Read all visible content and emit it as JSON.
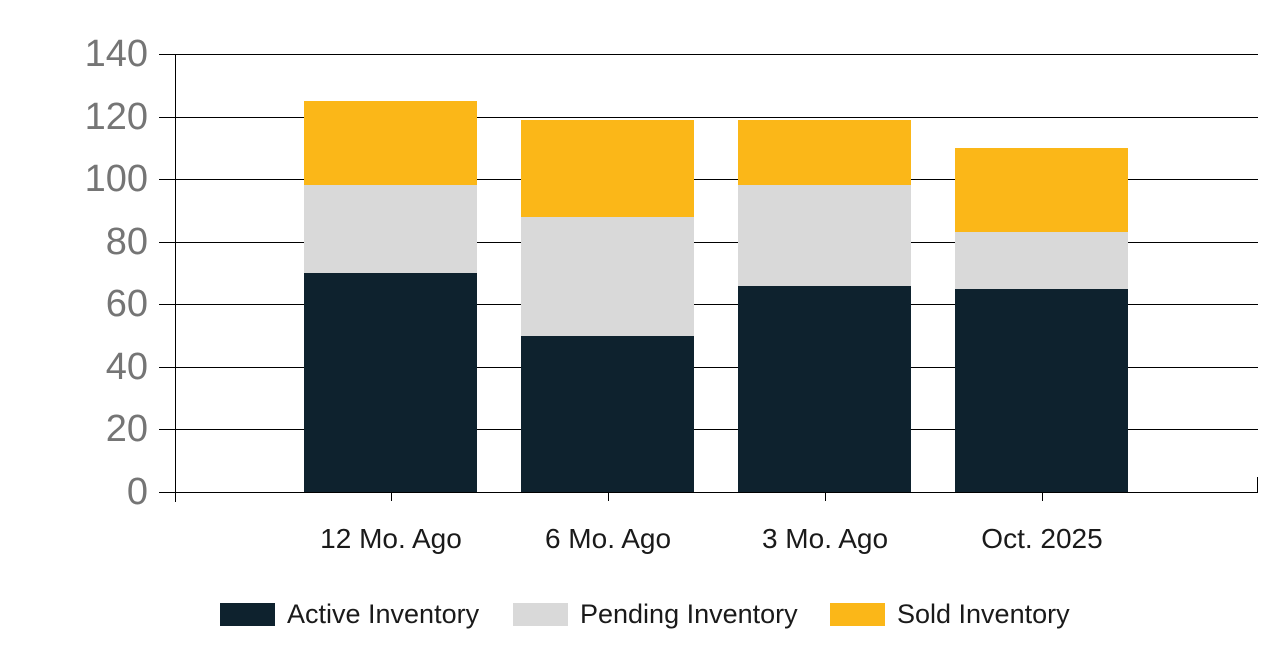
{
  "chart_data": {
    "type": "bar",
    "stacked": true,
    "title": "",
    "xlabel": "",
    "ylabel": "",
    "categories": [
      "12 Mo. Ago",
      "6 Mo. Ago",
      "3 Mo. Ago",
      "Oct. 2025"
    ],
    "series": [
      {
        "name": "Active Inventory",
        "color": "#0e222e",
        "values": [
          70,
          50,
          66,
          65
        ]
      },
      {
        "name": "Pending Inventory",
        "color": "#d9d9d9",
        "values": [
          28,
          38,
          32,
          18
        ]
      },
      {
        "name": "Sold Inventory",
        "color": "#fbb718",
        "values": [
          27,
          31,
          21,
          27
        ]
      }
    ],
    "stack_totals": [
      125,
      119,
      119,
      110
    ],
    "ylim": [
      0,
      140
    ],
    "yticks": [
      0,
      20,
      40,
      60,
      80,
      100,
      120,
      140
    ],
    "grid": "horizontal",
    "legend_position": "bottom"
  },
  "colors": {
    "background": "#ffffff",
    "gridline": "#000000",
    "axis": "#000000",
    "y_label_text": "#757575",
    "x_label_text": "#1a1a1a",
    "legend_text": "#1a1a1a",
    "active": "#0e222e",
    "pending": "#d9d9d9",
    "sold": "#fbb718"
  }
}
